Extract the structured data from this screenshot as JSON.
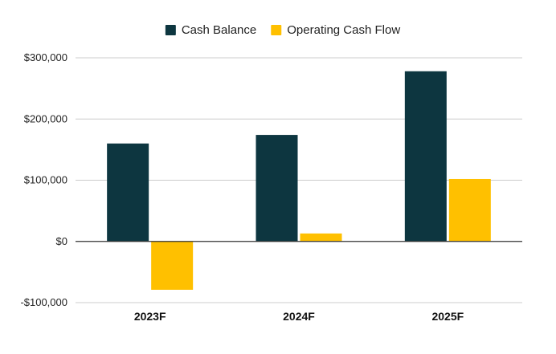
{
  "chart_data": {
    "type": "bar",
    "categories": [
      "2023F",
      "2024F",
      "2025F"
    ],
    "series": [
      {
        "name": "Cash Balance",
        "color": "#0d3640",
        "values": [
          160000,
          174000,
          278000
        ]
      },
      {
        "name": "Operating Cash Flow",
        "color": "#ffc000",
        "values": [
          -79000,
          13000,
          102000
        ]
      }
    ],
    "ylim": [
      -100000,
      300000
    ],
    "yticks": [
      -100000,
      0,
      100000,
      200000,
      300000
    ],
    "ytick_labels": [
      "-$100,000",
      "$0",
      "$100,000",
      "$200,000",
      "$300,000"
    ],
    "title": "",
    "xlabel": "",
    "ylabel": "",
    "legend_position": "top-center",
    "grid": true
  }
}
